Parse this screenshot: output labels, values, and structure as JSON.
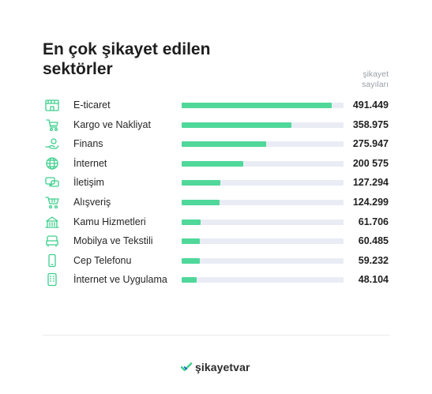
{
  "title": "En çok şikayet edilen sektörler",
  "column_header": "şikayet sayıları",
  "brand": "şikayetvar",
  "colors": {
    "bar": "#4fd89a",
    "track": "#eaecf5",
    "icon": "#3ecf8e"
  },
  "chart_data": {
    "type": "bar",
    "orientation": "horizontal",
    "categories": [
      "E-ticaret",
      "Kargo ve Nakliyat",
      "Finans",
      "İnternet",
      "İletişim",
      "Alışveriş",
      "Kamu Hizmetleri",
      "Mobilya ve Tekstili",
      "Cep Telefonu",
      "İnternet ve Uygulama"
    ],
    "value_labels": [
      "491.449",
      "358.975",
      "275.947",
      "200 575",
      "127.294",
      "124.299",
      "61.706",
      "60.485",
      "59.232",
      "48.104"
    ],
    "values": [
      491449,
      358975,
      275947,
      200575,
      127294,
      124299,
      61706,
      60485,
      59232,
      48104
    ],
    "icons": [
      "store-icon",
      "cart-icon",
      "money-hand-icon",
      "globe-icon",
      "chat-icon",
      "shopping-cart-icon",
      "building-icon",
      "armchair-icon",
      "phone-icon",
      "app-icon"
    ],
    "xlim": [
      0,
      530000
    ],
    "title": "En çok şikayet edilen sektörler"
  }
}
